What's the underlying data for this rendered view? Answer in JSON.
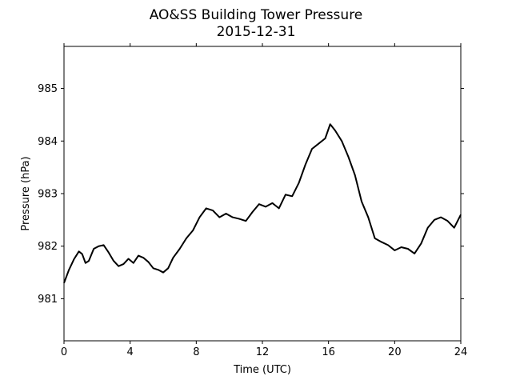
{
  "chart_data": {
    "type": "line",
    "title": "AO&SS Building Tower Pressure",
    "subtitle": "2015-12-31",
    "xlabel": "Time (UTC)",
    "ylabel": "Pressure (hPa)",
    "xlim": [
      0,
      24
    ],
    "ylim": [
      980.2,
      985.8
    ],
    "xticks": [
      0,
      4,
      8,
      12,
      16,
      20,
      24
    ],
    "yticks": [
      981,
      982,
      983,
      984,
      985
    ],
    "grid": false,
    "line_color": "#000000",
    "series": [
      {
        "x": [
          0.0,
          0.3,
          0.6,
          0.9,
          1.1,
          1.3,
          1.5,
          1.8,
          2.1,
          2.4,
          2.7,
          3.0,
          3.3,
          3.6,
          3.9,
          4.2,
          4.5,
          4.8,
          5.1,
          5.4,
          5.7,
          6.0,
          6.3,
          6.6,
          7.0,
          7.4,
          7.8,
          8.2,
          8.6,
          9.0,
          9.4,
          9.8,
          10.2,
          10.6,
          11.0,
          11.4,
          11.8,
          12.2,
          12.6,
          13.0,
          13.4,
          13.8,
          14.2,
          14.6,
          15.0,
          15.4,
          15.8,
          16.1,
          16.4,
          16.8,
          17.2,
          17.6,
          18.0,
          18.4,
          18.8,
          19.2,
          19.6,
          20.0,
          20.4,
          20.8,
          21.2,
          21.6,
          22.0,
          22.4,
          22.8,
          23.2,
          23.6,
          24.0
        ],
        "y": [
          981.3,
          981.55,
          981.75,
          981.9,
          981.85,
          981.68,
          981.72,
          981.95,
          982.0,
          982.02,
          981.88,
          981.72,
          981.62,
          981.66,
          981.76,
          981.68,
          981.82,
          981.78,
          981.7,
          981.58,
          981.55,
          981.5,
          981.58,
          981.78,
          981.95,
          982.15,
          982.3,
          982.55,
          982.72,
          982.68,
          982.55,
          982.62,
          982.55,
          982.52,
          982.48,
          982.65,
          982.8,
          982.75,
          982.82,
          982.72,
          982.98,
          982.95,
          983.2,
          983.55,
          983.85,
          983.95,
          984.05,
          984.32,
          984.2,
          984.0,
          983.7,
          983.35,
          982.85,
          982.55,
          982.15,
          982.08,
          982.02,
          981.92,
          981.98,
          981.95,
          981.86,
          982.05,
          982.35,
          982.5,
          982.55,
          982.48,
          982.35,
          982.6
        ]
      }
    ]
  }
}
